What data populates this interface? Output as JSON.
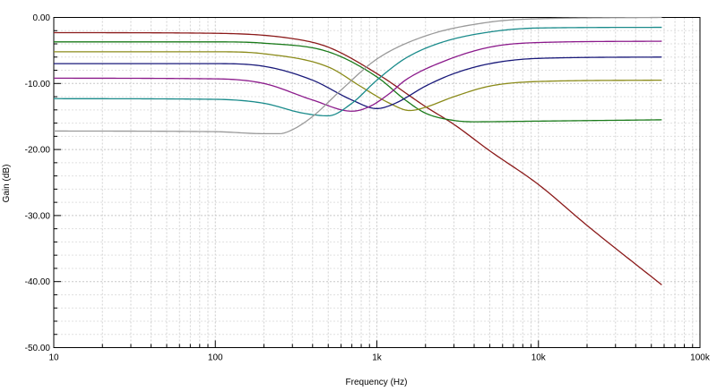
{
  "chart_data": {
    "type": "line",
    "xlabel": "Frequency (Hz)",
    "ylabel": "Gain (dB)",
    "x_scale": "log",
    "xlim": [
      10,
      100000
    ],
    "ylim": [
      -50,
      0
    ],
    "grid": true,
    "x_ticks": [
      {
        "value": 10,
        "label": "10"
      },
      {
        "value": 100,
        "label": "100"
      },
      {
        "value": 1000,
        "label": "1k"
      },
      {
        "value": 10000,
        "label": "10k"
      },
      {
        "value": 100000,
        "label": "100k"
      }
    ],
    "y_ticks": [
      {
        "value": 0,
        "label": "0.00"
      },
      {
        "value": -10,
        "label": "-10.00"
      },
      {
        "value": -20,
        "label": "-20.00"
      },
      {
        "value": -30,
        "label": "-30.00"
      },
      {
        "value": -40,
        "label": "-40.00"
      },
      {
        "value": -50,
        "label": "-50.00"
      }
    ],
    "series": [
      {
        "color": "#8b1a1a",
        "points": [
          [
            10,
            -2.3
          ],
          [
            100,
            -2.4
          ],
          [
            300,
            -3.2
          ],
          [
            500,
            -4.5
          ],
          [
            1000,
            -8.5
          ],
          [
            2000,
            -13.5
          ],
          [
            3000,
            -16.2
          ],
          [
            5000,
            -20.2
          ],
          [
            10000,
            -25.3
          ],
          [
            20000,
            -31.5
          ],
          [
            58000,
            -40.5
          ]
        ]
      },
      {
        "color": "#1a7a1a",
        "points": [
          [
            10,
            -3.7
          ],
          [
            100,
            -3.7
          ],
          [
            200,
            -3.9
          ],
          [
            500,
            -5.2
          ],
          [
            1000,
            -9
          ],
          [
            1500,
            -12.5
          ],
          [
            2000,
            -14.5
          ],
          [
            3000,
            -15.6
          ],
          [
            4000,
            -15.8
          ],
          [
            10000,
            -15.7
          ],
          [
            58000,
            -15.5
          ]
        ]
      },
      {
        "color": "#8b8b1a",
        "points": [
          [
            10,
            -5.2
          ],
          [
            100,
            -5.2
          ],
          [
            200,
            -5.5
          ],
          [
            500,
            -7.5
          ],
          [
            800,
            -10.5
          ],
          [
            1200,
            -13
          ],
          [
            1600,
            -14.1
          ],
          [
            2000,
            -13.6
          ],
          [
            3000,
            -12
          ],
          [
            5000,
            -10.4
          ],
          [
            10000,
            -9.7
          ],
          [
            58000,
            -9.5
          ]
        ]
      },
      {
        "color": "#1a1a7a",
        "points": [
          [
            10,
            -7
          ],
          [
            100,
            -7
          ],
          [
            200,
            -7.4
          ],
          [
            400,
            -9.5
          ],
          [
            700,
            -12.5
          ],
          [
            1000,
            -13.8
          ],
          [
            1300,
            -13
          ],
          [
            2000,
            -10.4
          ],
          [
            3000,
            -8.5
          ],
          [
            5000,
            -7
          ],
          [
            10000,
            -6.2
          ],
          [
            58000,
            -6
          ]
        ]
      },
      {
        "color": "#8b1a8b",
        "points": [
          [
            10,
            -9.2
          ],
          [
            100,
            -9.3
          ],
          [
            200,
            -10
          ],
          [
            400,
            -12.5
          ],
          [
            700,
            -14.2
          ],
          [
            900,
            -13.5
          ],
          [
            1200,
            -11.5
          ],
          [
            1500,
            -9.5
          ],
          [
            2500,
            -6.8
          ],
          [
            5000,
            -4.5
          ],
          [
            10000,
            -3.8
          ],
          [
            58000,
            -3.6
          ]
        ]
      },
      {
        "color": "#1a8b8b",
        "points": [
          [
            10,
            -12.3
          ],
          [
            100,
            -12.4
          ],
          [
            200,
            -13
          ],
          [
            350,
            -14.5
          ],
          [
            500,
            -14.9
          ],
          [
            700,
            -13
          ],
          [
            1000,
            -9.5
          ],
          [
            1500,
            -6.2
          ],
          [
            2500,
            -3.8
          ],
          [
            5000,
            -2.2
          ],
          [
            10000,
            -1.6
          ],
          [
            58000,
            -1.5
          ]
        ]
      },
      {
        "color": "#9a9a9a",
        "points": [
          [
            10,
            -17.2
          ],
          [
            100,
            -17.3
          ],
          [
            200,
            -17.6
          ],
          [
            250,
            -17.6
          ],
          [
            300,
            -17
          ],
          [
            400,
            -15
          ],
          [
            600,
            -11
          ],
          [
            1000,
            -6.3
          ],
          [
            2000,
            -2.8
          ],
          [
            5000,
            -0.7
          ],
          [
            10000,
            -0.2
          ],
          [
            58000,
            0
          ]
        ]
      }
    ]
  }
}
